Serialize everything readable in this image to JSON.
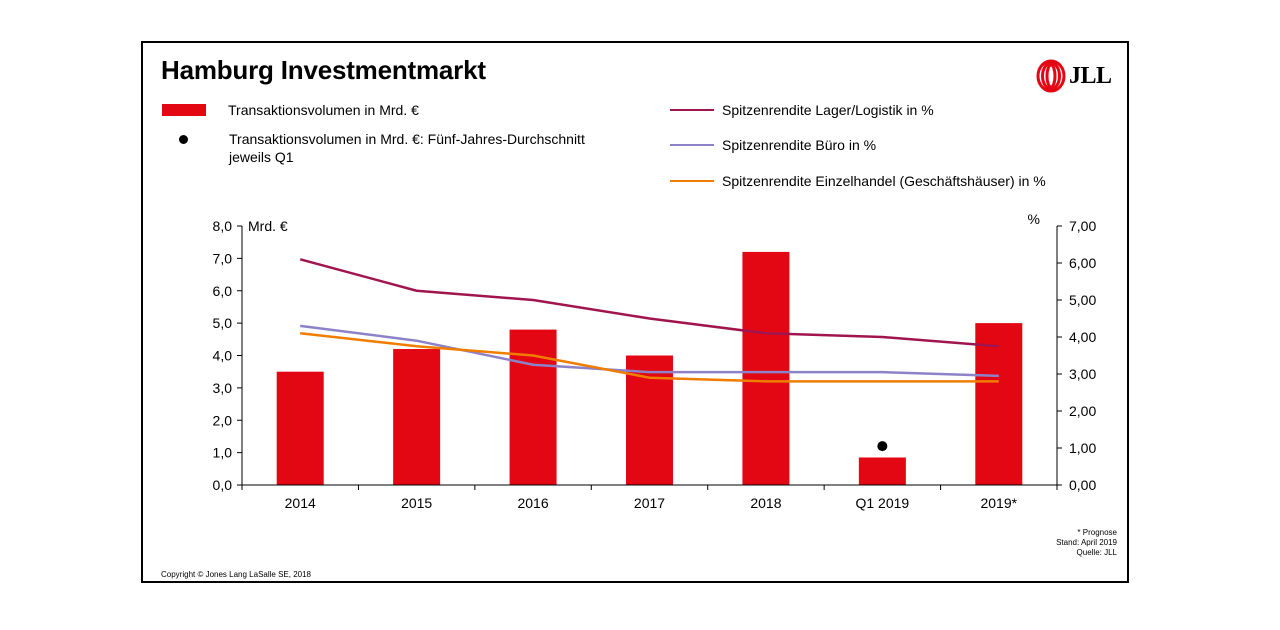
{
  "title": "Hamburg Investmentmarkt",
  "logo_text": "JLL",
  "colors": {
    "bars": "#e30613",
    "lager": "#a0154f",
    "buero": "#8c82c8",
    "einzelhandel": "#f07d00",
    "dot": "#000000"
  },
  "legend": [
    {
      "kind": "bar",
      "label": "Transaktionsvolumen in Mrd. €",
      "color": "#e30613"
    },
    {
      "kind": "dot",
      "label": "Transaktionsvolumen in Mrd. €: Fünf-Jahres-Durchschnitt\njeweils Q1",
      "color": "#000000"
    },
    {
      "kind": "line",
      "label": "Spitzenrendite Lager/Logistik in %",
      "color": "#a0154f"
    },
    {
      "kind": "line",
      "label": "Spitzenrendite Büro in %",
      "color": "#8c82c8"
    },
    {
      "kind": "line",
      "label": "Spitzenrendite Einzelhandel (Geschäftshäuser) in %",
      "color": "#f07d00"
    }
  ],
  "chart_data": {
    "type": "bar",
    "categories": [
      "2014",
      "2015",
      "2016",
      "2017",
      "2018",
      "Q1 2019",
      "2019*"
    ],
    "y_left": {
      "label": "Mrd. €",
      "ylim": [
        0,
        8
      ],
      "ticks": [
        "0,0",
        "1,0",
        "2,0",
        "3,0",
        "4,0",
        "5,0",
        "6,0",
        "7,0",
        "8,0"
      ]
    },
    "y_right": {
      "label": "%",
      "ylim": [
        0,
        7
      ],
      "ticks": [
        "0,00",
        "1,00",
        "2,00",
        "3,00",
        "4,00",
        "5,00",
        "6,00",
        "7,00"
      ]
    },
    "bars": {
      "name": "Transaktionsvolumen in Mrd. €",
      "values": [
        3.5,
        4.2,
        4.8,
        4.0,
        7.2,
        0.85,
        5.0
      ]
    },
    "dot": {
      "name": "Transaktionsvolumen in Mrd. €: Fünf-Jahres-Durchschnitt jeweils Q1",
      "category": "Q1 2019",
      "value": 1.2
    },
    "lines": [
      {
        "name": "Spitzenrendite Lager/Logistik in %",
        "axis": "right",
        "values": [
          6.1,
          5.25,
          5.0,
          4.5,
          4.1,
          4.0,
          3.75
        ]
      },
      {
        "name": "Spitzenrendite Büro in %",
        "axis": "right",
        "values": [
          4.3,
          3.9,
          3.25,
          3.05,
          3.05,
          3.05,
          2.95
        ]
      },
      {
        "name": "Spitzenrendite Einzelhandel (Geschäftshäuser) in %",
        "axis": "right",
        "values": [
          4.1,
          3.75,
          3.5,
          2.9,
          2.8,
          2.8,
          2.8
        ]
      }
    ]
  },
  "notes": [
    "* Prognose",
    "Stand: April 2019",
    "Quelle: JLL"
  ],
  "copyright": "Copyright © Jones Lang LaSalle SE, 2018"
}
